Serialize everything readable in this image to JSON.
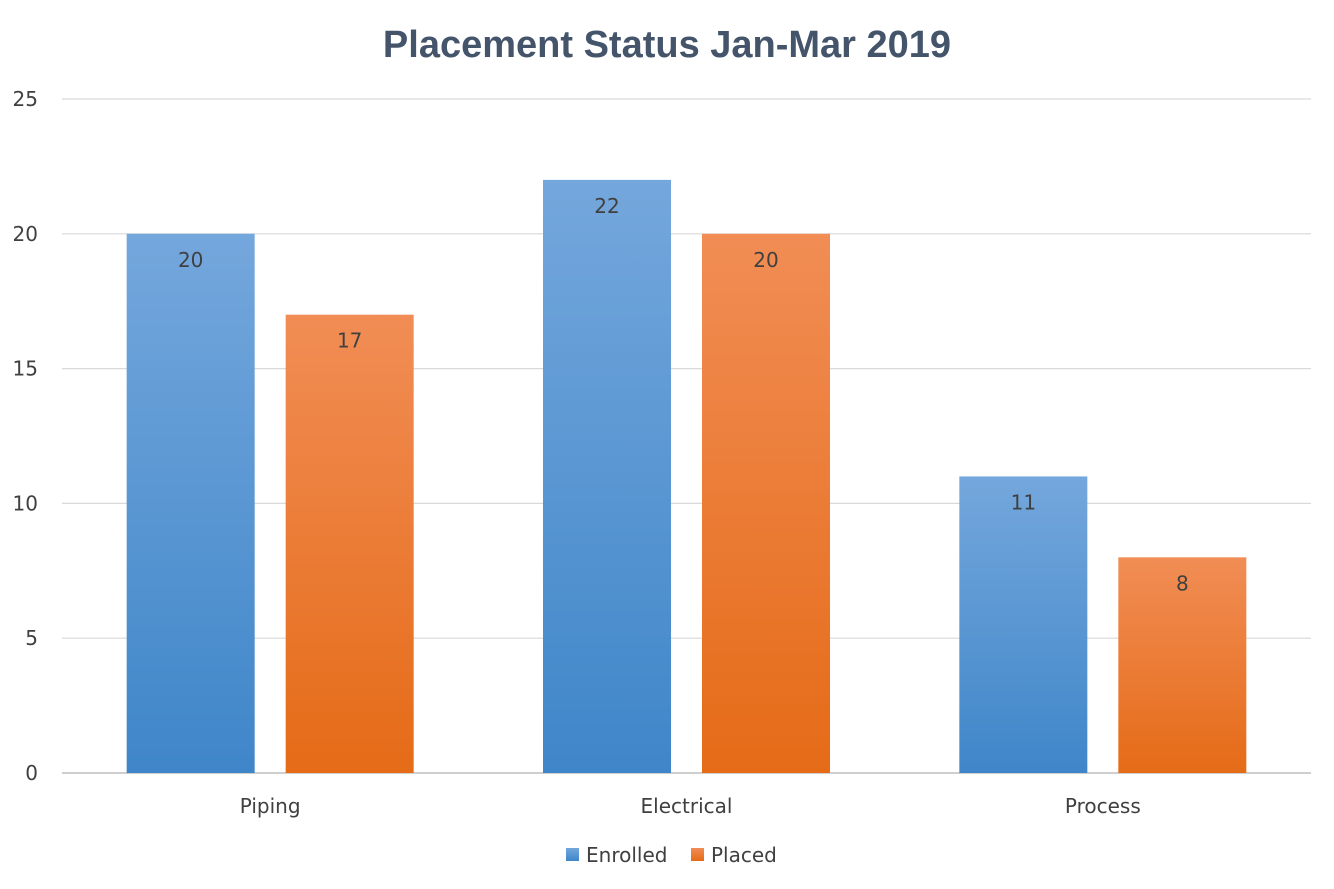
{
  "chart_data": {
    "type": "bar",
    "title": "Placement Status Jan-Mar 2019",
    "xlabel": "",
    "ylabel": "",
    "ylim": [
      0,
      25
    ],
    "yticks": [
      0,
      5,
      10,
      15,
      20,
      25
    ],
    "grid": true,
    "legend_position": "bottom",
    "categories": [
      "Piping",
      "Electrical",
      "Process"
    ],
    "series": [
      {
        "name": "Enrolled",
        "values": [
          20,
          22,
          11
        ],
        "color_top": "#74a7dc",
        "color_bottom": "#3f86c9"
      },
      {
        "name": "Placed",
        "values": [
          17,
          20,
          8
        ],
        "color_top": "#f18d55",
        "color_bottom": "#e56b17"
      }
    ],
    "data_labels": true
  }
}
